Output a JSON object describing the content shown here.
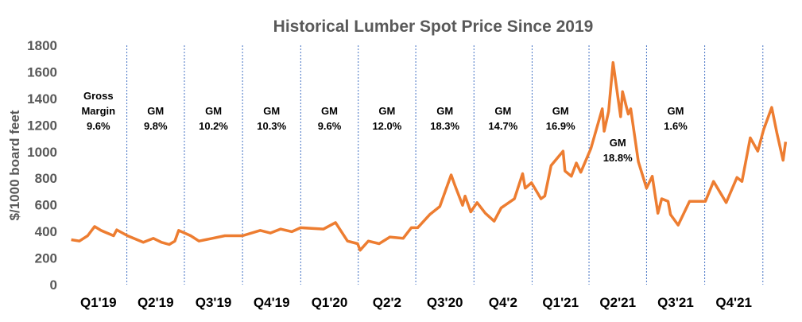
{
  "chart_data": {
    "type": "line",
    "title": "Historical Lumber Spot Price Since 2019",
    "xlabel": "",
    "ylabel": "$/1000 board feet",
    "ylim": [
      0,
      1800
    ],
    "yticks": [
      0,
      200,
      400,
      600,
      800,
      1000,
      1200,
      1400,
      1600,
      1800
    ],
    "xlim": [
      "2019-01-01",
      "2022-02-08"
    ],
    "grid": false,
    "legend": "none",
    "line_color": "#ED7D31",
    "divider_color": "#4472C4",
    "quarters": [
      {
        "label": "Q1'19",
        "start": "2019-01-01",
        "annotation": [
          "Gross",
          "Margin",
          "9.6%"
        ]
      },
      {
        "label": "Q2'19",
        "start": "2019-04-01",
        "annotation": [
          "GM",
          "9.8%"
        ]
      },
      {
        "label": "Q3'19",
        "start": "2019-07-01",
        "annotation": [
          "GM",
          "10.2%"
        ]
      },
      {
        "label": "Q4'19",
        "start": "2019-10-01",
        "annotation": [
          "GM",
          "10.3%"
        ]
      },
      {
        "label": "Q1'20",
        "start": "2020-01-01",
        "annotation": [
          "GM",
          "9.6%"
        ]
      },
      {
        "label": "Q2'2",
        "start": "2020-04-01",
        "annotation": [
          "GM",
          "12.0%"
        ]
      },
      {
        "label": "Q3'20",
        "start": "2020-07-01",
        "annotation": [
          "GM",
          "18.3%"
        ]
      },
      {
        "label": "Q4'2",
        "start": "2020-10-01",
        "annotation": [
          "GM",
          "14.7%"
        ]
      },
      {
        "label": "Q1'21",
        "start": "2021-01-01",
        "annotation": [
          "GM",
          "16.9%"
        ]
      },
      {
        "label": "Q2'21",
        "start": "2021-04-01",
        "annotation": [
          "GM",
          "18.8%"
        ]
      },
      {
        "label": "Q3'21",
        "start": "2021-07-01",
        "annotation": [
          "GM",
          "1.6%"
        ]
      },
      {
        "label": "Q4'21",
        "start": "2021-10-01",
        "annotation": []
      }
    ],
    "dividers": [
      "2019-04-01",
      "2019-07-01",
      "2019-10-01",
      "2020-01-01",
      "2020-04-01",
      "2020-07-01",
      "2020-10-01",
      "2021-01-01",
      "2021-04-01",
      "2021-07-01",
      "2021-10-01",
      "2022-01-01"
    ],
    "series": [
      {
        "x": [
          "2019-01-03",
          "2019-01-16",
          "2019-01-29",
          "2019-02-09",
          "2019-02-19",
          "2019-03-11",
          "2019-03-16",
          "2019-04-02",
          "2019-04-27",
          "2019-05-13",
          "2019-05-26",
          "2019-06-07",
          "2019-06-16",
          "2019-06-22",
          "2019-07-11",
          "2019-07-24",
          "2019-08-14",
          "2019-09-03",
          "2019-10-01",
          "2019-10-29",
          "2019-11-14",
          "2019-11-30",
          "2019-12-18",
          "2020-01-01",
          "2020-02-06",
          "2020-02-25",
          "2020-03-15",
          "2020-03-31",
          "2020-04-04",
          "2020-04-17",
          "2020-05-04",
          "2020-05-21",
          "2020-06-11",
          "2020-06-24",
          "2020-07-04",
          "2020-07-23",
          "2020-08-08",
          "2020-08-26",
          "2020-09-01",
          "2020-09-13",
          "2020-09-17",
          "2020-09-26",
          "2020-10-06",
          "2020-10-19",
          "2020-11-02",
          "2020-11-13",
          "2020-12-04",
          "2020-12-17",
          "2020-12-21",
          "2020-12-31",
          "2021-01-15",
          "2021-01-21",
          "2021-01-31",
          "2021-02-19",
          "2021-02-22",
          "2021-03-04",
          "2021-03-12",
          "2021-03-19",
          "2021-04-04",
          "2021-04-22",
          "2021-04-25",
          "2021-05-02",
          "2021-05-09",
          "2021-05-21",
          "2021-05-24",
          "2021-06-02",
          "2021-06-06",
          "2021-06-18",
          "2021-07-01",
          "2021-07-10",
          "2021-07-19",
          "2021-07-25",
          "2021-08-04",
          "2021-08-08",
          "2021-08-20",
          "2021-09-07",
          "2021-10-02",
          "2021-10-15",
          "2021-11-04",
          "2021-11-21",
          "2021-11-29",
          "2021-12-12",
          "2021-12-24",
          "2022-01-02",
          "2022-01-15",
          "2022-01-23",
          "2022-02-02",
          "2022-02-06"
        ],
        "y": [
          338,
          328,
          368,
          437,
          408,
          368,
          412,
          368,
          318,
          348,
          318,
          302,
          328,
          408,
          368,
          328,
          348,
          368,
          368,
          408,
          388,
          418,
          398,
          428,
          418,
          467,
          328,
          308,
          259,
          328,
          308,
          358,
          348,
          428,
          428,
          527,
          587,
          825,
          746,
          597,
          666,
          547,
          617,
          537,
          477,
          577,
          646,
          835,
          726,
          766,
          646,
          666,
          895,
          1004,
          855,
          815,
          915,
          845,
          1024,
          1323,
          1154,
          1303,
          1671,
          1263,
          1452,
          1283,
          1323,
          925,
          726,
          815,
          537,
          646,
          626,
          527,
          448,
          626,
          626,
          776,
          617,
          806,
          776,
          1104,
          1004,
          1164,
          1333,
          1144,
          935,
          1074
        ]
      }
    ]
  }
}
